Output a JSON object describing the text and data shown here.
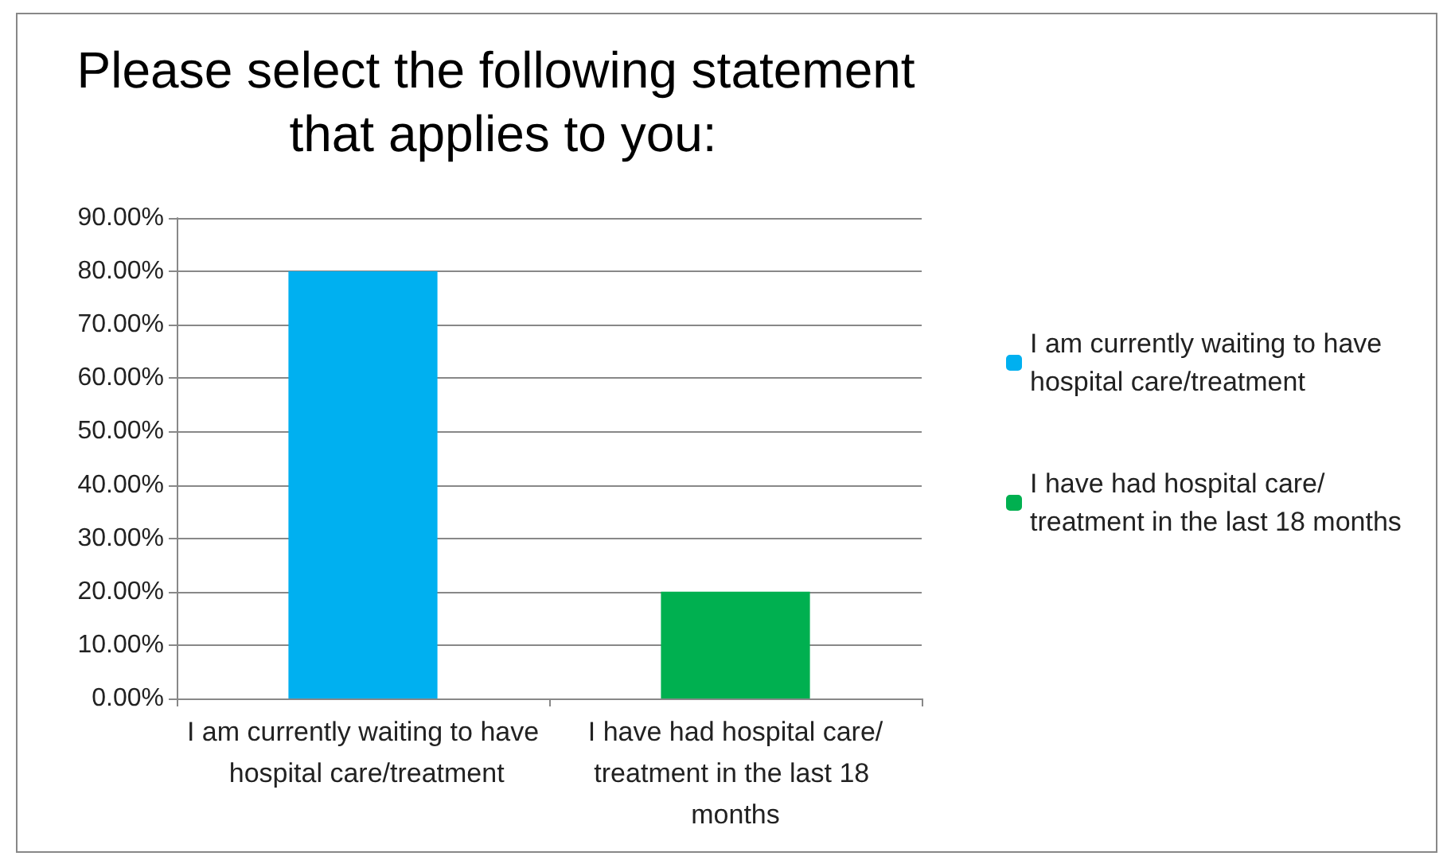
{
  "chart_data": {
    "type": "bar",
    "title": "Please select the following statement that applies to you:",
    "categories": [
      "I am currently waiting to have hospital care/treatment",
      "I have had hospital care/treatment in the last 18 months"
    ],
    "series": [
      {
        "name": "I am currently waiting to have hospital care/treatment",
        "color": "#00b0f0",
        "values": [
          80,
          null
        ]
      },
      {
        "name": "I have had hospital care/treatment in the last 18 months",
        "color": "#00b050",
        "values": [
          null,
          20
        ]
      }
    ],
    "ylim": [
      0,
      90
    ],
    "yticks": [
      {
        "value": 0,
        "label": "0.00%"
      },
      {
        "value": 10,
        "label": "10.00%"
      },
      {
        "value": 20,
        "label": "20.00%"
      },
      {
        "value": 30,
        "label": "30.00%"
      },
      {
        "value": 40,
        "label": "40.00%"
      },
      {
        "value": 50,
        "label": "50.00%"
      },
      {
        "value": 60,
        "label": "60.00%"
      },
      {
        "value": 70,
        "label": "70.00%"
      },
      {
        "value": 80,
        "label": "80.00%"
      },
      {
        "value": 90,
        "label": "90.00%"
      }
    ],
    "grid": "y",
    "legend": "right"
  }
}
